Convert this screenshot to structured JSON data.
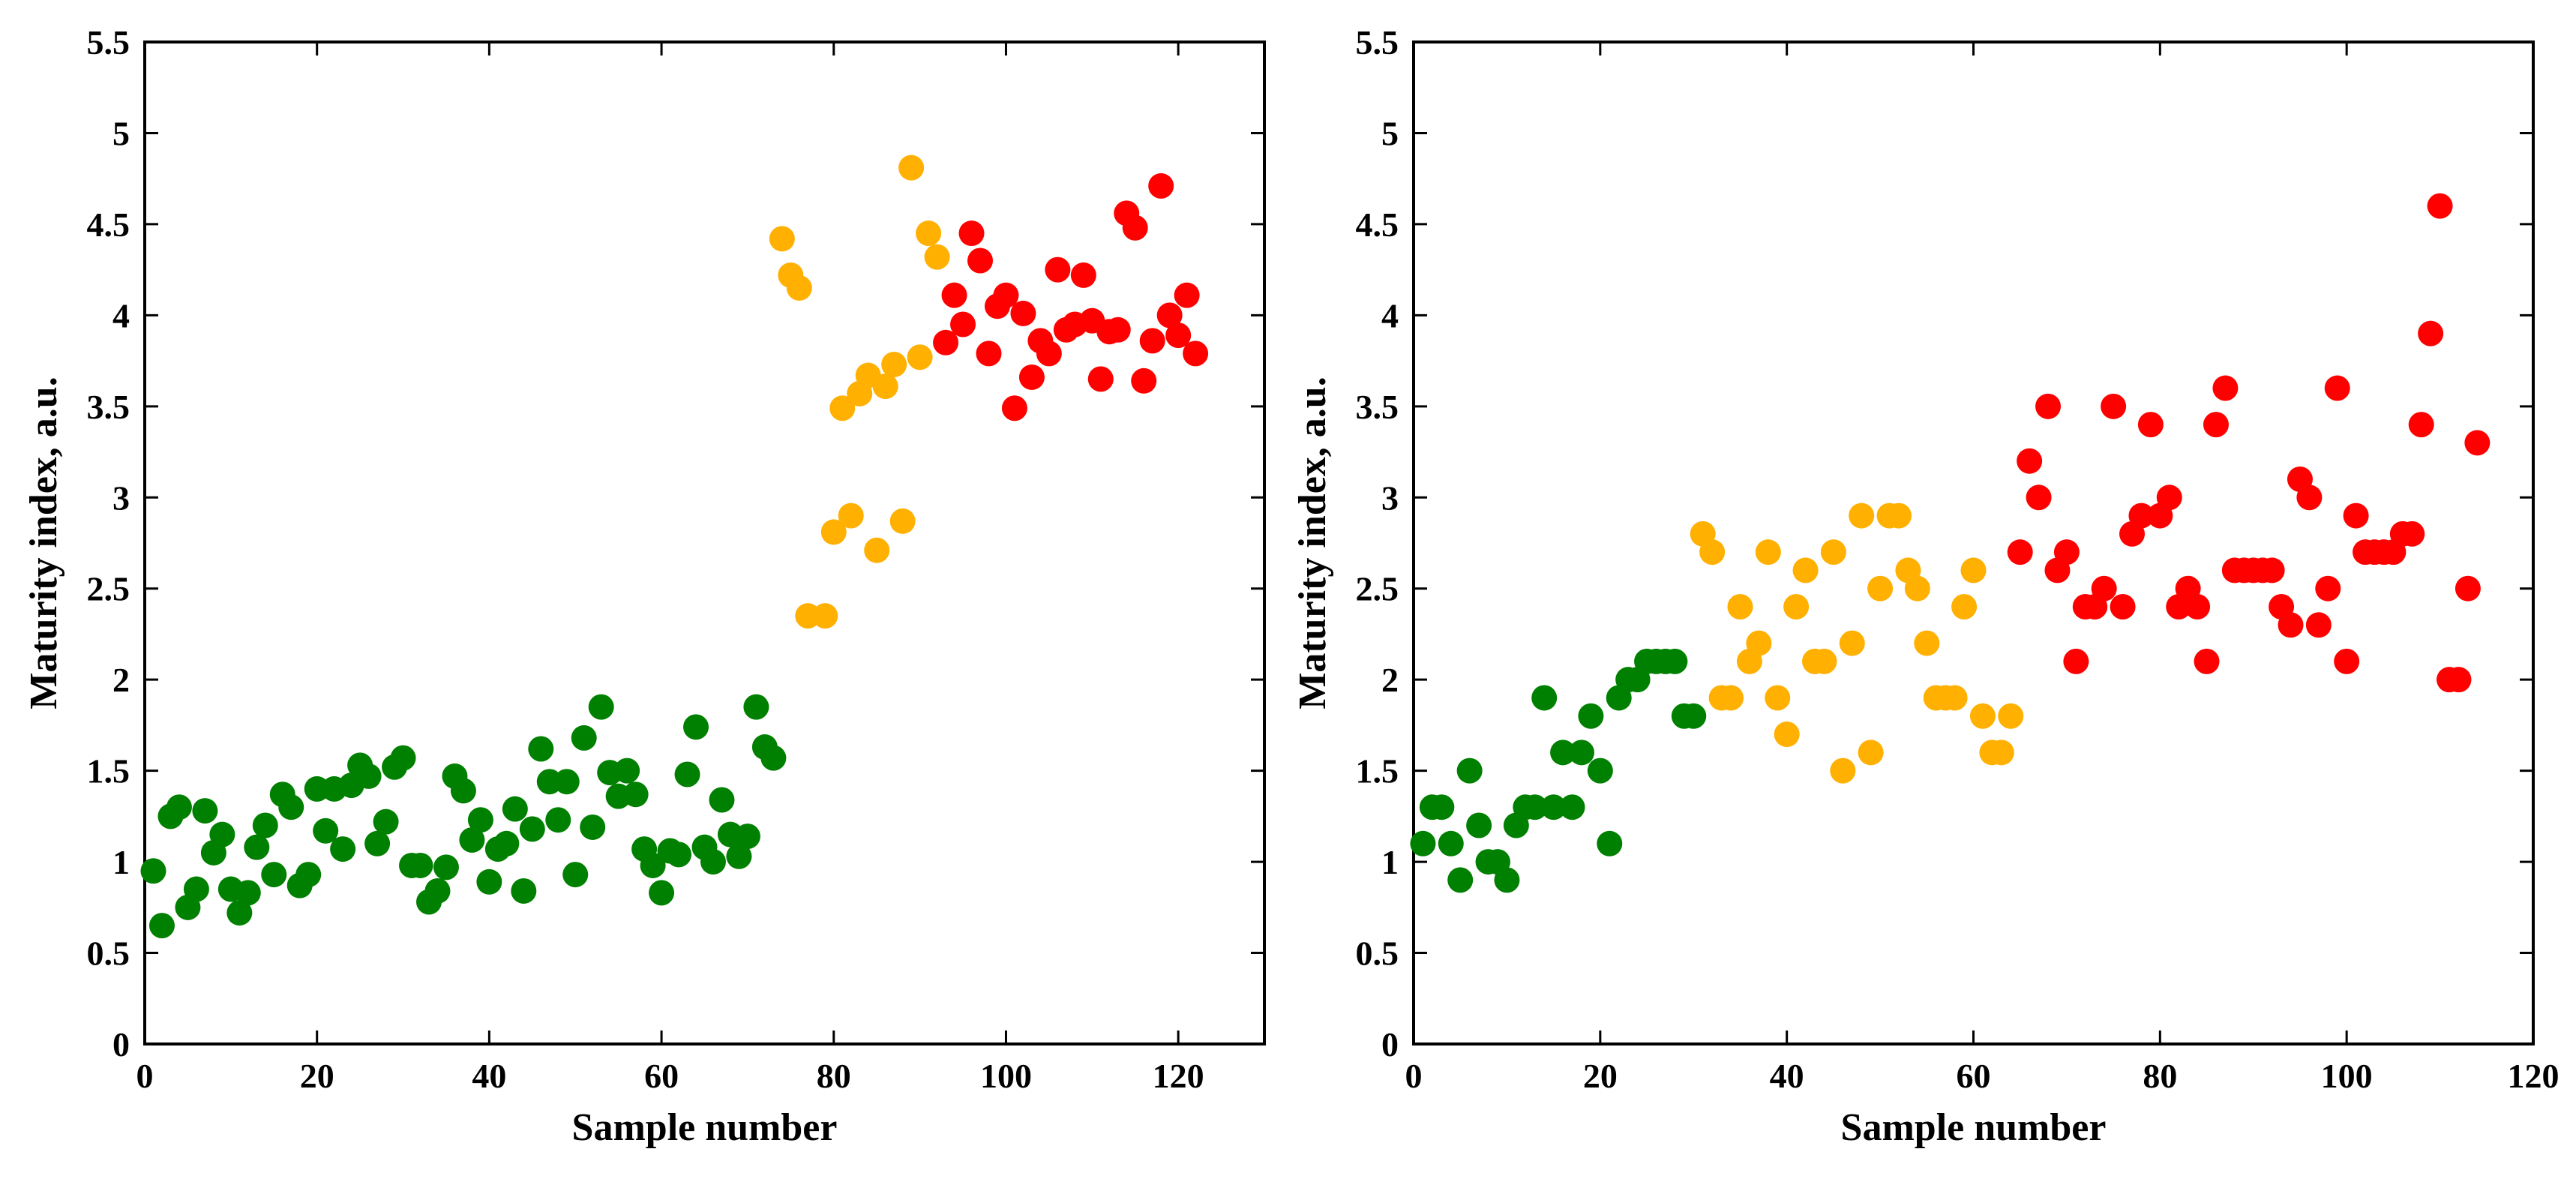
{
  "chart_data": [
    {
      "type": "scatter",
      "title": "",
      "xlabel": "Sample number",
      "ylabel": "Maturity index, a.u.",
      "xlim": [
        0,
        130
      ],
      "ylim": [
        0,
        5.5
      ],
      "xticks": [
        "0",
        "20",
        "40",
        "60",
        "80",
        "100",
        "120"
      ],
      "xtick_values": [
        0,
        20,
        40,
        60,
        80,
        100,
        120
      ],
      "yticks": [
        "0",
        "0.5",
        "1",
        "1.5",
        "2",
        "2.5",
        "3",
        "3.5",
        "4",
        "4.5",
        "5",
        "5.5"
      ],
      "ytick_values": [
        0,
        0.5,
        1,
        1.5,
        2,
        2.5,
        3,
        3.5,
        4,
        4.5,
        5,
        5.5
      ],
      "grid": false,
      "series": [
        {
          "name": "green",
          "color": "#008000",
          "x": [
            1,
            2,
            3,
            4,
            5,
            6,
            7,
            8,
            9,
            10,
            11,
            12,
            13,
            14,
            15,
            16,
            17,
            18,
            19,
            20,
            21,
            22,
            23,
            24,
            25,
            26,
            27,
            28,
            29,
            30,
            31,
            32,
            33,
            34,
            35,
            36,
            37,
            38,
            39,
            40,
            41,
            42,
            43,
            44,
            45,
            46,
            47,
            48,
            49,
            50,
            51,
            52,
            53,
            54,
            55,
            56,
            57,
            58,
            59,
            60,
            61,
            62,
            63,
            64,
            65,
            66,
            67,
            68,
            69,
            70,
            71,
            72,
            73
          ],
          "y": [
            0.95,
            0.65,
            1.25,
            1.3,
            0.75,
            0.85,
            1.28,
            1.05,
            1.15,
            0.85,
            0.72,
            0.83,
            1.08,
            1.2,
            0.93,
            1.37,
            1.3,
            0.87,
            0.93,
            1.4,
            1.17,
            1.4,
            1.07,
            1.42,
            1.53,
            1.47,
            1.1,
            1.22,
            1.52,
            1.57,
            0.98,
            0.98,
            0.78,
            0.84,
            0.97,
            1.47,
            1.39,
            1.12,
            1.23,
            0.89,
            1.07,
            1.1,
            1.29,
            0.84,
            1.18,
            1.62,
            1.44,
            1.23,
            1.44,
            0.93,
            1.68,
            1.19,
            1.85,
            1.49,
            1.36,
            1.5,
            1.37,
            1.07,
            0.98,
            0.83,
            1.06,
            1.04,
            1.48,
            1.74,
            1.08,
            1.0,
            1.34,
            1.15,
            1.03,
            1.14,
            1.85,
            1.63,
            1.57
          ]
        },
        {
          "name": "orange",
          "color": "#FFB000",
          "x": [
            74,
            75,
            76,
            77,
            79,
            80,
            81,
            82,
            83,
            84,
            85,
            86,
            87,
            88,
            89,
            90,
            91,
            92
          ],
          "y": [
            4.42,
            4.22,
            4.15,
            2.35,
            2.35,
            2.81,
            3.49,
            2.9,
            3.57,
            3.67,
            2.71,
            3.61,
            3.73,
            2.87,
            4.81,
            3.77,
            4.45,
            4.32
          ]
        },
        {
          "name": "red",
          "color": "#FF0000",
          "x": [
            93,
            94,
            95,
            96,
            97,
            98,
            99,
            100,
            101,
            102,
            103,
            104,
            105,
            106,
            107,
            108,
            109,
            110,
            111,
            112,
            113,
            114,
            115,
            116,
            117,
            118,
            119,
            120,
            121,
            122
          ],
          "y": [
            3.85,
            4.11,
            3.95,
            4.45,
            4.3,
            3.79,
            4.05,
            4.11,
            3.49,
            4.01,
            3.66,
            3.86,
            3.79,
            4.25,
            3.92,
            3.95,
            4.22,
            3.97,
            3.65,
            3.91,
            3.92,
            4.56,
            4.48,
            3.64,
            3.86,
            4.71,
            4.0,
            3.89,
            4.11,
            3.79
          ]
        }
      ]
    },
    {
      "type": "scatter",
      "title": "",
      "xlabel": "Sample number",
      "ylabel": "Maturity index, a.u.",
      "xlim": [
        0,
        120
      ],
      "ylim": [
        0,
        5.5
      ],
      "xticks": [
        "0",
        "20",
        "40",
        "60",
        "80",
        "100",
        "120"
      ],
      "xtick_values": [
        0,
        20,
        40,
        60,
        80,
        100,
        120
      ],
      "yticks": [
        "0",
        "0.5",
        "1",
        "1.5",
        "2",
        "2.5",
        "3",
        "3.5",
        "4",
        "4.5",
        "5",
        "5.5"
      ],
      "ytick_values": [
        0,
        0.5,
        1,
        1.5,
        2,
        2.5,
        3,
        3.5,
        4,
        4.5,
        5,
        5.5
      ],
      "grid": false,
      "series": [
        {
          "name": "green",
          "color": "#008000",
          "x": [
            1,
            2,
            3,
            4,
            5,
            6,
            7,
            8,
            9,
            10,
            11,
            12,
            13,
            14,
            15,
            16,
            17,
            18,
            19,
            20,
            21,
            22,
            23,
            24,
            25,
            26,
            27,
            28,
            29,
            30
          ],
          "y": [
            1.1,
            1.3,
            1.3,
            1.1,
            0.9,
            1.5,
            1.2,
            1.0,
            1.0,
            0.9,
            1.2,
            1.3,
            1.3,
            1.9,
            1.3,
            1.6,
            1.3,
            1.6,
            1.8,
            1.5,
            1.1,
            1.9,
            2.0,
            2.0,
            2.1,
            2.1,
            2.1,
            2.1,
            1.8,
            1.8
          ]
        },
        {
          "name": "orange",
          "color": "#FFB000",
          "x": [
            31,
            32,
            33,
            34,
            35,
            36,
            37,
            38,
            39,
            40,
            41,
            42,
            43,
            44,
            45,
            46,
            47,
            48,
            49,
            50,
            51,
            52,
            53,
            54,
            55,
            56,
            57,
            58,
            59,
            60,
            61,
            62,
            63,
            64
          ],
          "y": [
            2.8,
            2.7,
            1.9,
            1.9,
            2.4,
            2.1,
            2.2,
            2.7,
            1.9,
            1.7,
            2.4,
            2.6,
            2.1,
            2.1,
            2.7,
            1.5,
            2.2,
            2.9,
            1.6,
            2.5,
            2.9,
            2.9,
            2.6,
            2.5,
            2.2,
            1.9,
            1.9,
            1.9,
            2.4,
            2.6,
            1.8,
            1.6,
            1.6,
            1.8
          ]
        },
        {
          "name": "red",
          "color": "#FF0000",
          "x": [
            65,
            66,
            67,
            68,
            69,
            70,
            71,
            72,
            73,
            74,
            75,
            76,
            77,
            78,
            79,
            80,
            81,
            82,
            83,
            84,
            85,
            86,
            87,
            88,
            89,
            90,
            91,
            92,
            93,
            94,
            95,
            96,
            97,
            98,
            99,
            100,
            101,
            102,
            103,
            104,
            105,
            106,
            107,
            108,
            109,
            110,
            111,
            112,
            113,
            114
          ],
          "y": [
            2.7,
            3.2,
            3.0,
            3.5,
            2.6,
            2.7,
            2.1,
            2.4,
            2.4,
            2.5,
            3.5,
            2.4,
            2.8,
            2.9,
            3.4,
            2.9,
            3.0,
            2.4,
            2.5,
            2.4,
            2.1,
            3.4,
            3.6,
            2.6,
            2.6,
            2.6,
            2.6,
            2.6,
            2.4,
            2.3,
            3.1,
            3.0,
            2.3,
            2.5,
            3.6,
            2.1,
            2.9,
            2.7,
            2.7,
            2.7,
            2.7,
            2.8,
            2.8,
            3.4,
            3.9,
            4.6,
            2.0,
            2.0,
            2.5,
            3.3
          ]
        }
      ]
    }
  ]
}
